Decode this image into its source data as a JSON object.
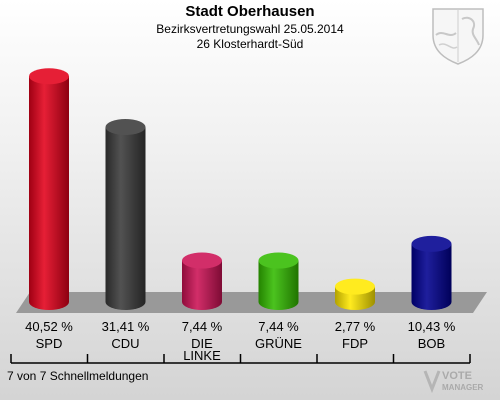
{
  "header": {
    "title": "Stadt Oberhausen",
    "subtitle": "Bezirksvertretungswahl 25.05.2014",
    "district": "26 Klosterhardt-Süd"
  },
  "footer": {
    "reporting": "7 von 7 Schnellmeldungen"
  },
  "branding": {
    "line1": "VOTE",
    "line2": "MANAGER"
  },
  "chart_data": {
    "type": "bar",
    "categories": [
      "SPD",
      "CDU",
      "DIE LINKE",
      "GRÜNE",
      "FDP",
      "BOB"
    ],
    "category_lines": [
      [
        "SPD"
      ],
      [
        "CDU"
      ],
      [
        "DIE",
        "LINKE"
      ],
      [
        "GRÜNE"
      ],
      [
        "FDP"
      ],
      [
        "BOB"
      ]
    ],
    "values": [
      40.52,
      31.41,
      7.44,
      7.44,
      2.77,
      10.43
    ],
    "value_labels": [
      "40,52 %",
      "31,41 %",
      "7,44 %",
      "7,44 %",
      "2,77 %",
      "10,43 %"
    ],
    "colors": [
      "#e3001b",
      "#3a3a3a",
      "#cc1155",
      "#33bb00",
      "#ffe800",
      "#000090"
    ],
    "ylim": [
      0,
      42
    ],
    "grid": false,
    "legend": "none"
  }
}
